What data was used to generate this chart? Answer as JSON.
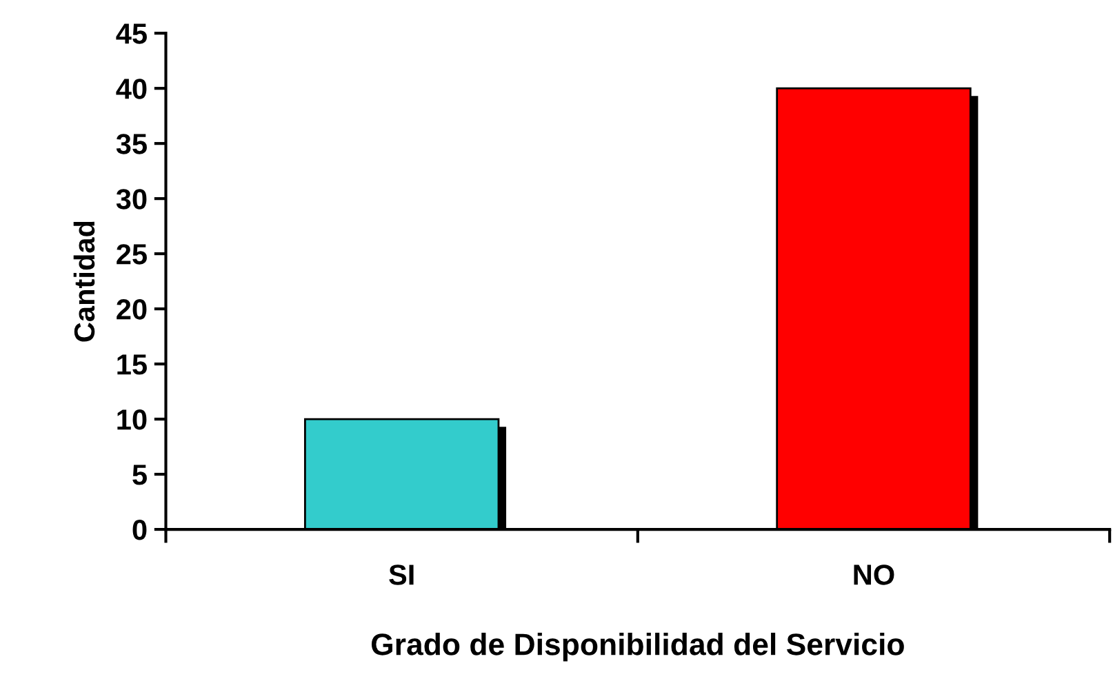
{
  "chart_data": {
    "type": "bar",
    "xlabel": "Grado de Disponibilidad del Servicio",
    "ylabel": "Cantidad",
    "categories": [
      "SI",
      "NO"
    ],
    "values": [
      10,
      40
    ],
    "colors": [
      "#33cccc",
      "#ff0000"
    ],
    "ylim": [
      0,
      45
    ],
    "yticks": [
      0,
      5,
      10,
      15,
      20,
      25,
      30,
      35,
      40,
      45
    ],
    "grid": false,
    "legend": false
  }
}
